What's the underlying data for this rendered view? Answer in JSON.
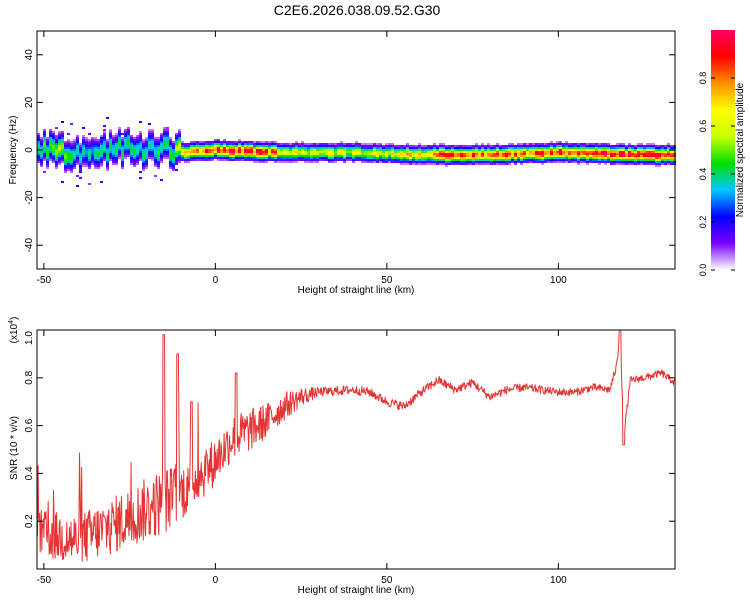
{
  "figure": {
    "title": "C2E6.2026.038.09.52.G30"
  },
  "chart_data": [
    {
      "type": "heatmap",
      "title": "C2E6.2026.038.09.52.G30",
      "xlabel": "Height of straight line (km)",
      "ylabel": "Frequency (Hz)",
      "xlim": [
        -52,
        134
      ],
      "ylim": [
        -50,
        50
      ],
      "x_ticks": [
        "-50",
        "0",
        "50",
        "100"
      ],
      "x_tick_values": [
        -50,
        0,
        50,
        100
      ],
      "y_ticks": [
        "-40",
        "-20",
        "0",
        "20",
        "40"
      ],
      "y_tick_values": [
        -40,
        -20,
        0,
        20,
        40
      ],
      "colorbar": {
        "label": "Normalized spectral amplitude",
        "range": [
          0,
          1
        ],
        "ticks": [
          "0.0",
          "0.2",
          "0.4",
          "0.6",
          "0.8"
        ],
        "tick_values": [
          0,
          0.2,
          0.4,
          0.6,
          0.8
        ],
        "stops": [
          "#ffffff",
          "#7a00ff",
          "#0000ff",
          "#00c8ff",
          "#00e000",
          "#c8ff00",
          "#ffff00",
          "#ff9000",
          "#ff0000",
          "#ff0060"
        ]
      },
      "band_center_hz": [
        [
          -52,
          0
        ],
        [
          -45,
          0
        ],
        [
          -40,
          -2
        ],
        [
          -35,
          -1
        ],
        [
          -30,
          0
        ],
        [
          -25,
          1
        ],
        [
          -20,
          0
        ],
        [
          -15,
          1
        ],
        [
          -10,
          -1
        ],
        [
          0,
          0
        ],
        [
          20,
          -1
        ],
        [
          40,
          -1
        ],
        [
          60,
          -2
        ],
        [
          80,
          -2
        ],
        [
          100,
          -1
        ],
        [
          120,
          -2
        ],
        [
          134,
          -2
        ]
      ],
      "peak_amplitude": [
        [
          -52,
          0.45
        ],
        [
          -46,
          0.6
        ],
        [
          -40,
          0.35
        ],
        [
          -30,
          0.4
        ],
        [
          -20,
          0.4
        ],
        [
          -12,
          0.45
        ],
        [
          -10,
          0.75
        ],
        [
          0,
          0.9
        ],
        [
          15,
          0.9
        ],
        [
          20,
          0.7
        ],
        [
          30,
          0.6
        ],
        [
          50,
          0.65
        ],
        [
          70,
          0.85
        ],
        [
          90,
          0.85
        ],
        [
          104,
          0.95
        ],
        [
          118,
          0.95
        ],
        [
          134,
          0.85
        ]
      ]
    },
    {
      "type": "line",
      "series_name": "SNR",
      "ylabel": "SNR (10 * v/v)",
      "y_multiplier_label": "(x10",
      "y_multiplier_exp": "4",
      "xlabel": "Height of straight line (km)",
      "xlim": [
        -52,
        134
      ],
      "ylim": [
        0,
        1.0
      ],
      "x_ticks": [
        "-50",
        "0",
        "50",
        "100"
      ],
      "x_tick_values": [
        -50,
        0,
        50,
        100
      ],
      "y_ticks": [
        "0.2",
        "0.4",
        "0.6",
        "0.8",
        "1.0"
      ],
      "y_tick_values": [
        0.2,
        0.4,
        0.6,
        0.8,
        1.0
      ],
      "color": "#e53333",
      "trend": [
        [
          -52,
          0.15
        ],
        [
          -40,
          0.12
        ],
        [
          -30,
          0.18
        ],
        [
          -20,
          0.25
        ],
        [
          -10,
          0.32
        ],
        [
          0,
          0.45
        ],
        [
          5,
          0.55
        ],
        [
          10,
          0.58
        ],
        [
          15,
          0.62
        ],
        [
          20,
          0.68
        ],
        [
          25,
          0.72
        ],
        [
          30,
          0.74
        ],
        [
          40,
          0.75
        ],
        [
          45,
          0.74
        ],
        [
          50,
          0.7
        ],
        [
          55,
          0.68
        ],
        [
          60,
          0.74
        ],
        [
          65,
          0.79
        ],
        [
          70,
          0.75
        ],
        [
          75,
          0.78
        ],
        [
          80,
          0.72
        ],
        [
          85,
          0.75
        ],
        [
          90,
          0.76
        ],
        [
          100,
          0.74
        ],
        [
          105,
          0.74
        ],
        [
          110,
          0.76
        ],
        [
          115,
          0.75
        ],
        [
          117,
          0.85
        ],
        [
          118,
          1.0
        ],
        [
          119,
          0.55
        ],
        [
          121,
          0.79
        ],
        [
          125,
          0.8
        ],
        [
          130,
          0.82
        ],
        [
          134,
          0.78
        ]
      ],
      "noise_envelope": [
        [
          -52,
          0.1
        ],
        [
          -30,
          0.12
        ],
        [
          -15,
          0.14
        ],
        [
          -10,
          0.12
        ],
        [
          0,
          0.1
        ],
        [
          10,
          0.09
        ],
        [
          20,
          0.06
        ],
        [
          30,
          0.02
        ],
        [
          134,
          0.015
        ]
      ],
      "peaks": [
        [
          -15,
          0.98
        ],
        [
          -11,
          0.9
        ],
        [
          -7,
          0.7
        ],
        [
          6,
          0.82
        ],
        [
          118,
          1.0
        ],
        [
          119,
          0.52
        ]
      ]
    }
  ]
}
